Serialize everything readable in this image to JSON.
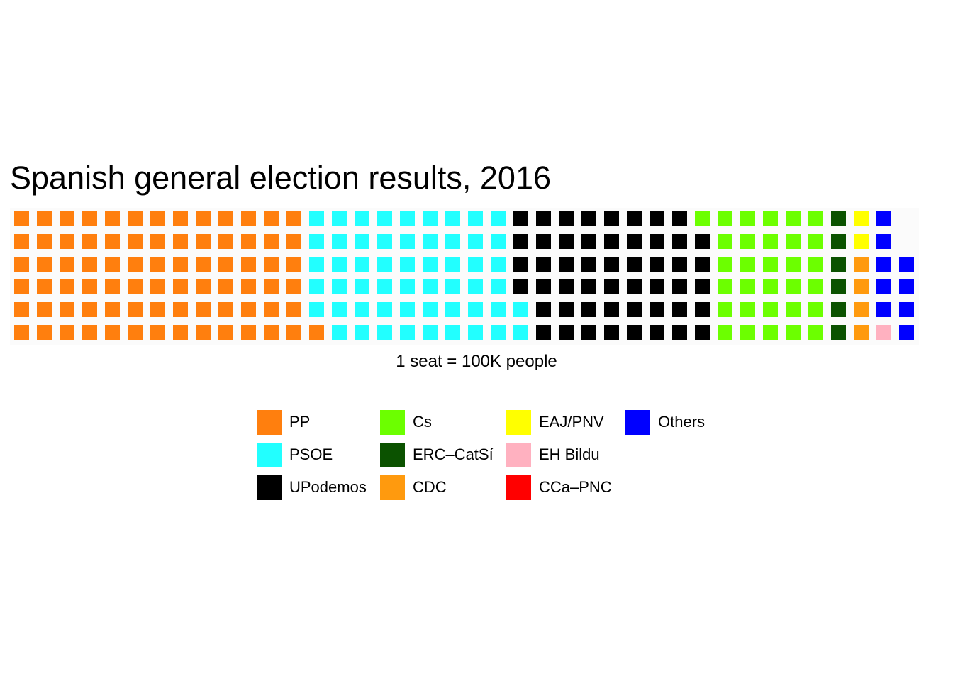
{
  "chart_data": {
    "type": "waffle",
    "title": "Spanish general election results, 2016",
    "xlabel": "1 seat = 100K people",
    "rows": 6,
    "legend_position": "bottom",
    "series": [
      {
        "name": "PP",
        "value": 79,
        "color": "#FF7F0E"
      },
      {
        "name": "PSOE",
        "value": 55,
        "color": "#22FFFF"
      },
      {
        "name": "UPodemos",
        "value": 51,
        "color": "#000000"
      },
      {
        "name": "Cs",
        "value": 31,
        "color": "#6CFF00"
      },
      {
        "name": "ERC–CatSí",
        "value": 6,
        "color": "#0B5200"
      },
      {
        "name": "CDC",
        "value": 4,
        "color": "#FF9A0E"
      },
      {
        "name": "EAJ/PNV",
        "value": 2,
        "color": "#FFFF00"
      },
      {
        "name": "EH Bildu",
        "value": 1,
        "color": "#FFB1C0"
      },
      {
        "name": "CCa–PNC",
        "value": 0,
        "color": "#FF0000"
      },
      {
        "name": "Others",
        "value": 9,
        "color": "#0000FF"
      }
    ]
  }
}
